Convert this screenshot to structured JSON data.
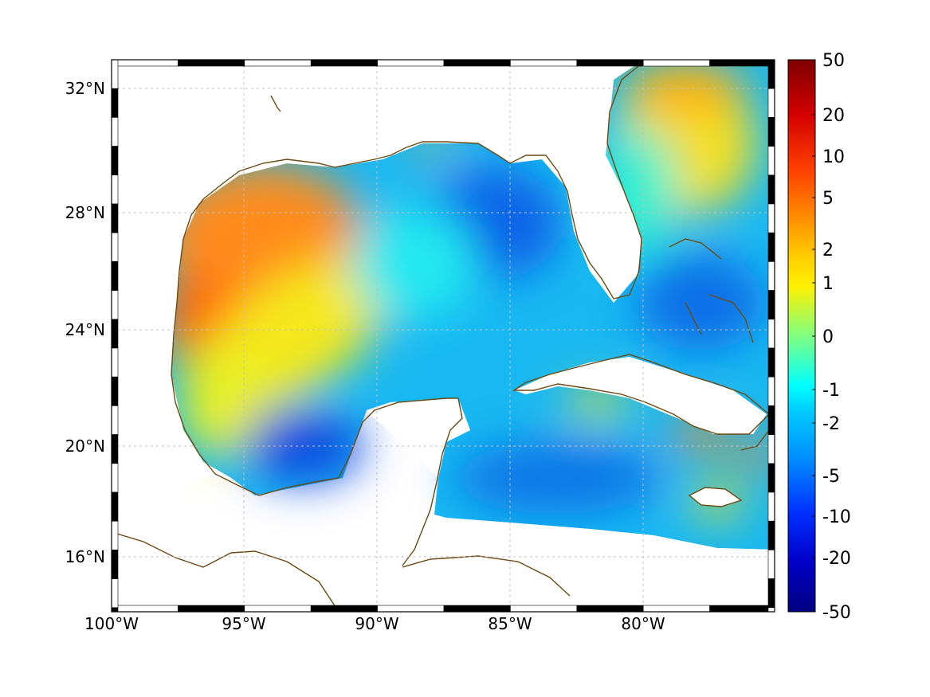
{
  "map": {
    "lon_labels": [
      "100°W",
      "95°W",
      "90°W",
      "85°W",
      "80°W"
    ],
    "lat_labels": [
      "32°N",
      "28°N",
      "24°N",
      "20°N",
      "16°N"
    ],
    "colors": {
      "coast": "#6b4a12",
      "grid": "#b8b8b8",
      "land": "#ffffff"
    }
  },
  "colorbar": {
    "labels": [
      "50",
      "20",
      "10",
      "5",
      "2",
      "1",
      "0",
      "-1",
      "-2",
      "-5",
      "-10",
      "-20",
      "-50"
    ],
    "colors": [
      "#800000",
      "#ff0000",
      "#ff8c00",
      "#ffff00",
      "#00ffff",
      "#0000ff",
      "#00008b"
    ]
  }
}
